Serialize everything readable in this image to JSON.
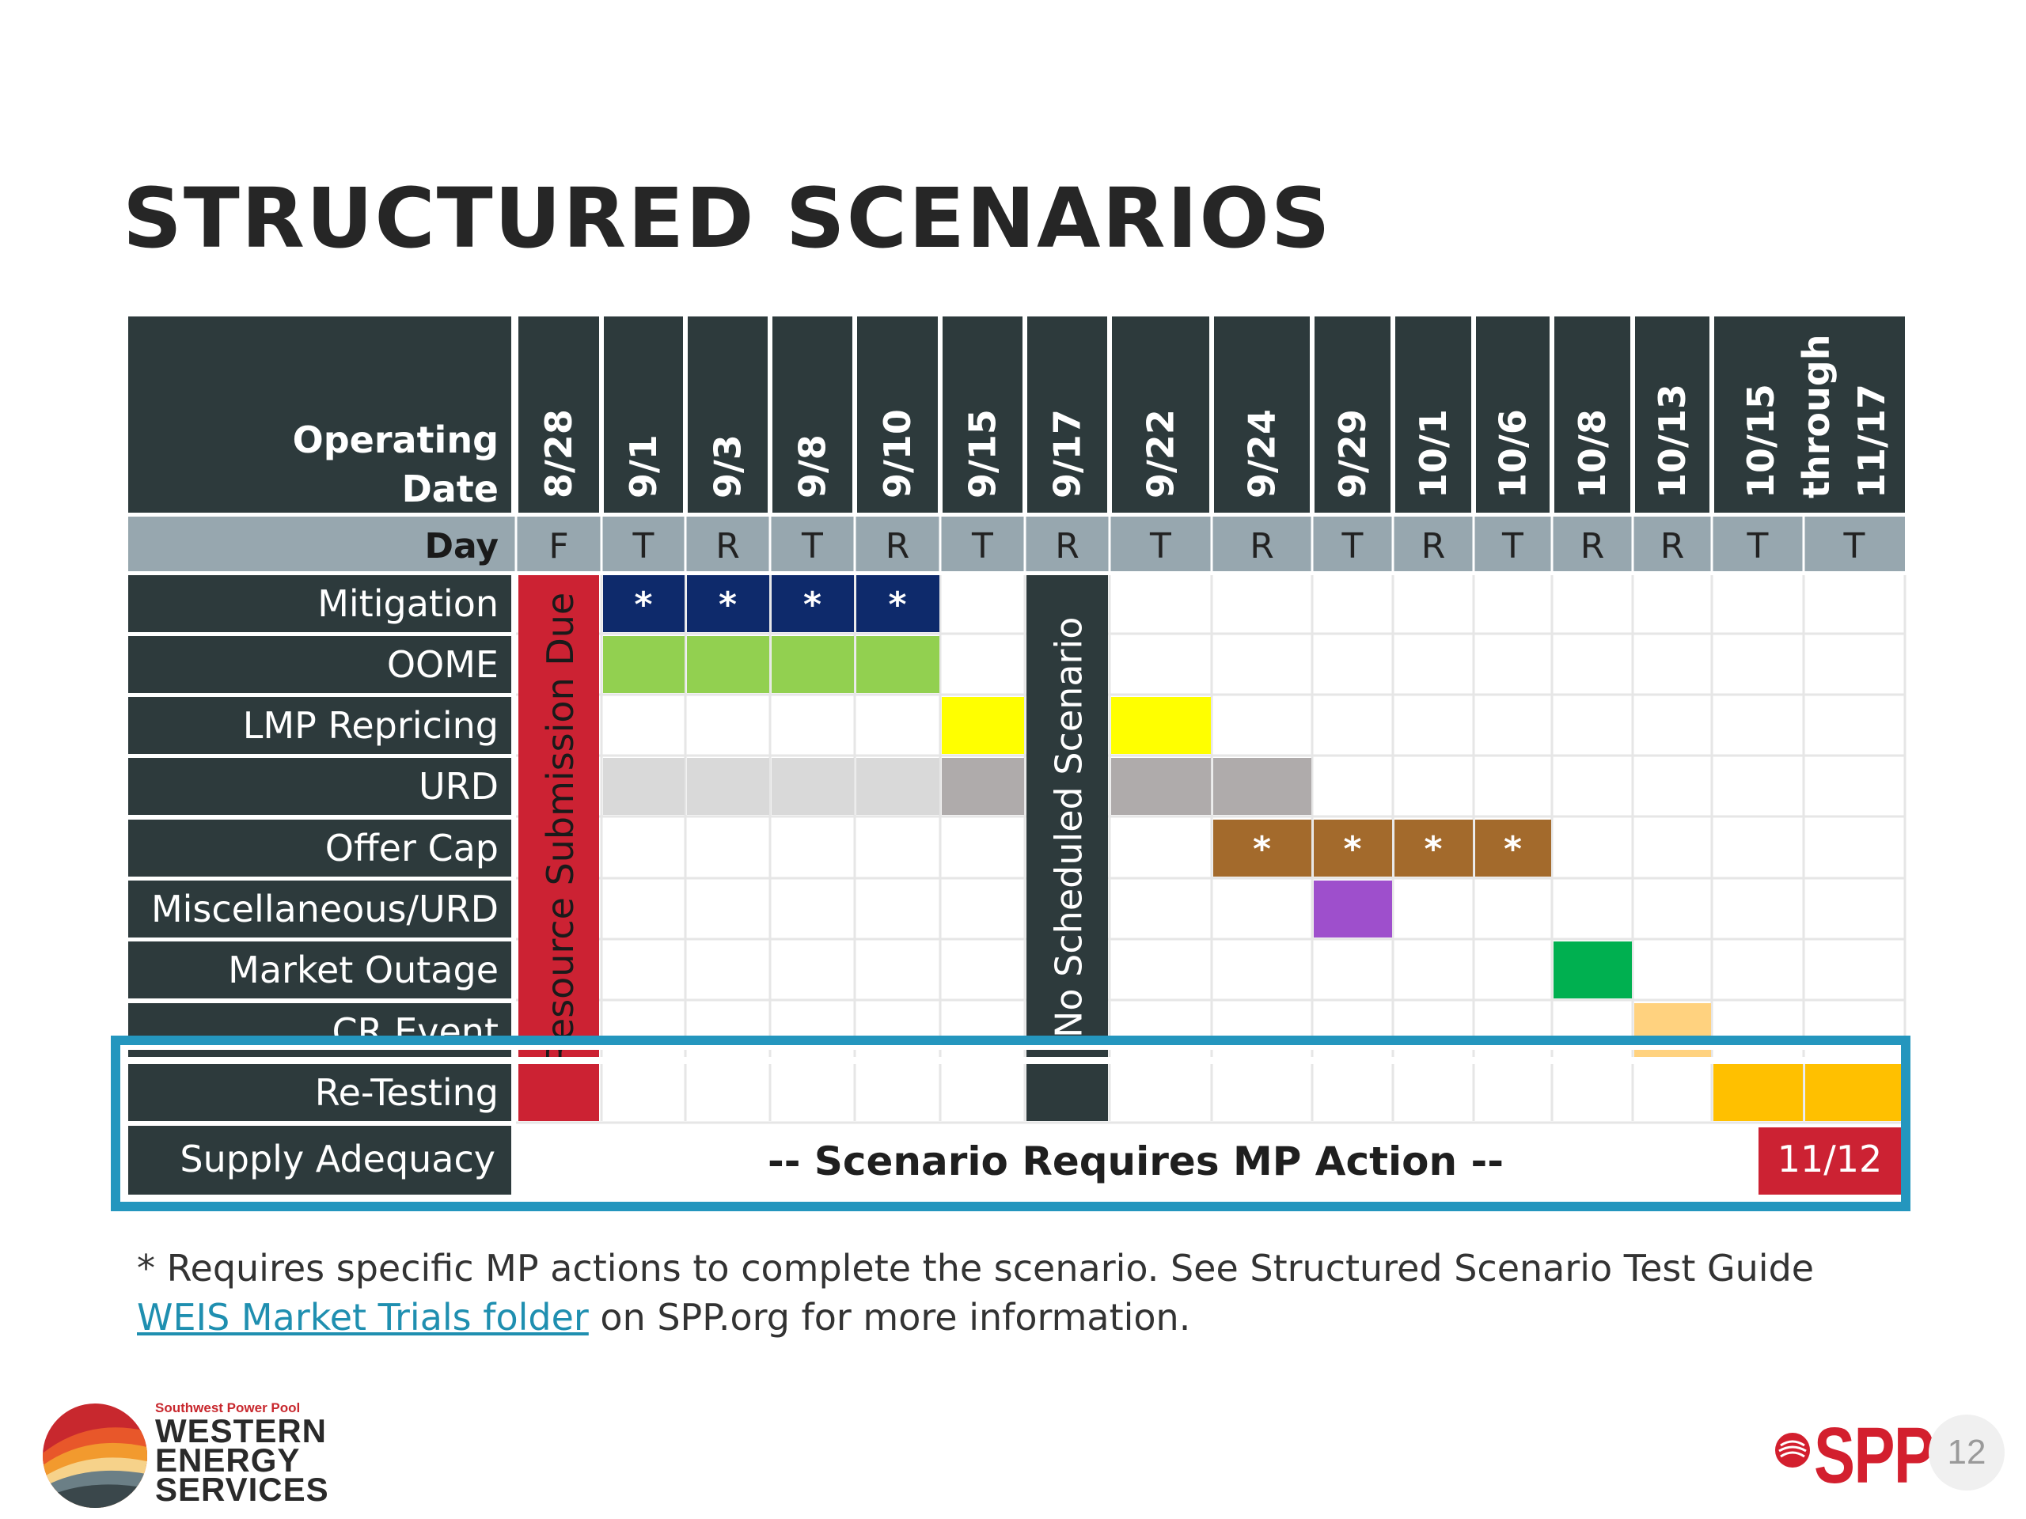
{
  "page": {
    "title": "STRUCTURED SCENARIOS",
    "footnote": {
      "before_link": "* Requires specific MP actions to complete the scenario. See Structured Scenario Test Guide ",
      "link_text": "WEIS Market Trials folder",
      "after_link": " on SPP.org for more information."
    },
    "page_number": "12",
    "logo_left": {
      "small": "Southwest Power Pool",
      "line1": "WESTERN",
      "line2": "ENERGY",
      "line3": "SERVICES"
    },
    "logo_right": {
      "text": "SPP"
    }
  },
  "schedule": {
    "header_label": "Operating Date",
    "day_label": "Day",
    "columns": [
      {
        "date": "8/28",
        "day": "F"
      },
      {
        "date": "9/1",
        "day": "T"
      },
      {
        "date": "9/3",
        "day": "R"
      },
      {
        "date": "9/8",
        "day": "T"
      },
      {
        "date": "9/10",
        "day": "R"
      },
      {
        "date": "9/15",
        "day": "T"
      },
      {
        "date": "9/17",
        "day": "R"
      },
      {
        "date": "9/22",
        "day": "T"
      },
      {
        "date": "9/24",
        "day": "R"
      },
      {
        "date": "9/29",
        "day": "T"
      },
      {
        "date": "10/1",
        "day": "R"
      },
      {
        "date": "10/6",
        "day": "T"
      },
      {
        "date": "10/8",
        "day": "R"
      },
      {
        "date": "10/13",
        "day": "R"
      },
      {
        "date": "10/15",
        "day": "T"
      },
      {
        "date": "through",
        "day": "T"
      },
      {
        "date": "11/17",
        "day": ""
      }
    ],
    "rows": [
      "Mitigation",
      "OOME",
      "LMP Repricing",
      "URD",
      "Offer Cap",
      "Miscellaneous/URD",
      "Market Outage",
      "CR Event",
      "Re-Testing"
    ],
    "supply_adequacy": {
      "label": "Supply Adequacy",
      "message": "-- Scenario Requires MP Action --",
      "date": "11/12"
    },
    "resource_due_label": "Resource Submission Due",
    "no_scenario_label": "No Scheduled Scenario",
    "colors": {
      "dark": "#2d3a3c",
      "day_row": "#97a7af",
      "red": "#cc2233",
      "navy": "#0e2a6b",
      "green": "#92d050",
      "yellow": "#ffff00",
      "light_gray": "#d9d9d9",
      "dark_gray": "#afabab",
      "brown": "#a36a2c",
      "purple": "#9e4fcc",
      "emerald": "#00b050",
      "peach": "#ffd27f",
      "orange": "#ffc000",
      "highlight_border": "#2496be"
    },
    "scenarios": [
      {
        "row": 0,
        "start": 1,
        "end": 4,
        "color": "navy",
        "star": true
      },
      {
        "row": 1,
        "start": 1,
        "end": 4,
        "color": "green",
        "star": false
      },
      {
        "row": 2,
        "start": 5,
        "end": 5,
        "color": "yellow",
        "star": false
      },
      {
        "row": 2,
        "start": 7,
        "end": 7,
        "color": "yellow",
        "star": false
      },
      {
        "row": 3,
        "start": 1,
        "end": 4,
        "color": "light_gray",
        "star": false
      },
      {
        "row": 3,
        "start": 5,
        "end": 5,
        "color": "dark_gray",
        "star": false
      },
      {
        "row": 3,
        "start": 7,
        "end": 8,
        "color": "dark_gray",
        "star": false
      },
      {
        "row": 4,
        "start": 8,
        "end": 11,
        "color": "brown",
        "star": true
      },
      {
        "row": 5,
        "start": 9,
        "end": 9,
        "color": "purple",
        "star": false
      },
      {
        "row": 6,
        "start": 12,
        "end": 12,
        "color": "emerald",
        "star": false
      },
      {
        "row": 7,
        "start": 13,
        "end": 13,
        "color": "peach",
        "star": false
      },
      {
        "row": 8,
        "start": 14,
        "end": 15,
        "color": "orange",
        "star": false
      }
    ]
  }
}
